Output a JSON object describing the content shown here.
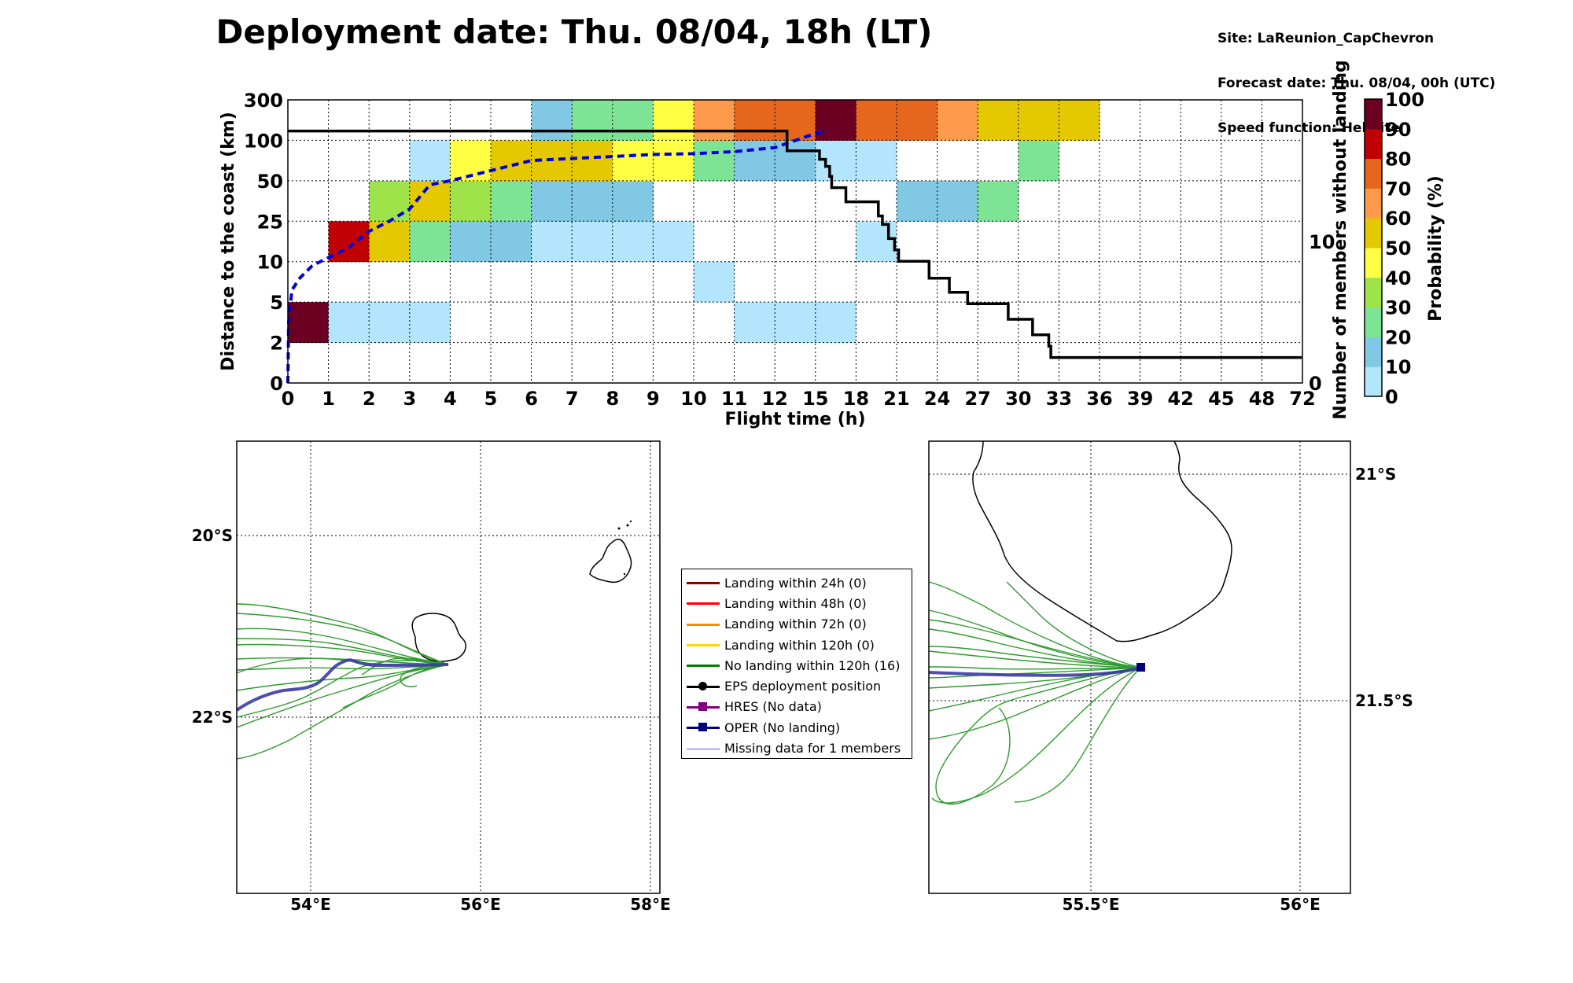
{
  "title": "Deployment date: Thu. 08/04, 18h (LT)",
  "meta": {
    "site": "Site: LaReunion_CapChevron",
    "forecast": "Forecast date: Thu. 08/04, 00h (UTC)",
    "speed": "Speed function: Helikite"
  },
  "chart_data": [
    {
      "type": "heatmap",
      "xlabel": "Flight time (h)",
      "ylabel": "Distance to the coast (km)",
      "y2label": "Number of members without landing",
      "colorbar_label": "Probability (%)",
      "x_ticks": [
        "0",
        "1",
        "2",
        "3",
        "4",
        "5",
        "6",
        "7",
        "8",
        "9",
        "10",
        "11",
        "12",
        "15",
        "18",
        "21",
        "24",
        "27",
        "30",
        "33",
        "36",
        "39",
        "42",
        "45",
        "48",
        "72"
      ],
      "y_ticks": [
        "0",
        "2",
        "5",
        "10",
        "25",
        "50",
        "100",
        "300"
      ],
      "y2_ticks": [
        "0",
        "10"
      ],
      "colorbar_ticks": [
        "0",
        "10",
        "20",
        "30",
        "40",
        "50",
        "60",
        "70",
        "80",
        "90",
        "100"
      ],
      "colorbar_colors": [
        "#b3e5fc",
        "#81c8e4",
        "#7ee495",
        "#9ee34a",
        "#ffff44",
        "#e4c800",
        "#fd9a4b",
        "#e6661d",
        "#c10003",
        "#6b0022"
      ],
      "grid": true,
      "cells_note_units": "each cell = [x-bin index (0..24), y-bin index (0=0-2km .. 6=100-300km), probability %]",
      "cells": [
        [
          0,
          1,
          95
        ],
        [
          1,
          1,
          5
        ],
        [
          2,
          1,
          5
        ],
        [
          3,
          1,
          5
        ],
        [
          11,
          1,
          5
        ],
        [
          12,
          1,
          5
        ],
        [
          13,
          1,
          5
        ],
        [
          10,
          2,
          5
        ],
        [
          1,
          3,
          85
        ],
        [
          2,
          3,
          55
        ],
        [
          3,
          3,
          25
        ],
        [
          4,
          3,
          15
        ],
        [
          5,
          3,
          15
        ],
        [
          6,
          3,
          5
        ],
        [
          7,
          3,
          5
        ],
        [
          8,
          3,
          5
        ],
        [
          9,
          3,
          5
        ],
        [
          14,
          3,
          5
        ],
        [
          2,
          4,
          35
        ],
        [
          3,
          4,
          55
        ],
        [
          4,
          4,
          35
        ],
        [
          5,
          4,
          25
        ],
        [
          6,
          4,
          15
        ],
        [
          7,
          4,
          15
        ],
        [
          8,
          4,
          15
        ],
        [
          15,
          4,
          15
        ],
        [
          16,
          4,
          15
        ],
        [
          17,
          4,
          25
        ],
        [
          3,
          5,
          5
        ],
        [
          4,
          5,
          45
        ],
        [
          5,
          5,
          55
        ],
        [
          6,
          5,
          55
        ],
        [
          7,
          5,
          55
        ],
        [
          8,
          5,
          45
        ],
        [
          9,
          5,
          45
        ],
        [
          10,
          5,
          25
        ],
        [
          11,
          5,
          15
        ],
        [
          12,
          5,
          15
        ],
        [
          13,
          5,
          5
        ],
        [
          14,
          5,
          5
        ],
        [
          18,
          5,
          25
        ],
        [
          6,
          6,
          15
        ],
        [
          7,
          6,
          25
        ],
        [
          8,
          6,
          25
        ],
        [
          9,
          6,
          45
        ],
        [
          10,
          6,
          65
        ],
        [
          11,
          6,
          75
        ],
        [
          12,
          6,
          75
        ],
        [
          13,
          6,
          95
        ],
        [
          14,
          6,
          75
        ],
        [
          15,
          6,
          75
        ],
        [
          16,
          6,
          65
        ],
        [
          17,
          6,
          55
        ],
        [
          18,
          6,
          55
        ],
        [
          19,
          6,
          55
        ]
      ],
      "series": [
        {
          "name": "Median distance (dashed)",
          "color": "#0000dd",
          "points": [
            [
              0,
              0
            ],
            [
              0.02,
              1.5
            ],
            [
              0.1,
              2.3
            ],
            [
              0.3,
              2.6
            ],
            [
              0.6,
              2.9
            ],
            [
              1,
              3.1
            ],
            [
              1.5,
              3.35
            ],
            [
              2,
              3.75
            ],
            [
              2.5,
              4.0
            ],
            [
              3,
              4.3
            ],
            [
              3.5,
              4.9
            ],
            [
              4,
              5.0
            ],
            [
              5,
              5.25
            ],
            [
              6,
              5.5
            ],
            [
              7,
              5.55
            ],
            [
              8,
              5.6
            ],
            [
              9,
              5.65
            ],
            [
              10,
              5.67
            ],
            [
              11,
              5.72
            ],
            [
              12,
              5.82
            ],
            [
              12.8,
              6.1
            ],
            [
              13.3,
              6.25
            ]
          ]
        },
        {
          "name": "Number of members without landing (step)",
          "color": "#000000",
          "y2_max": 14,
          "points": [
            [
              0,
              17.8
            ],
            [
              12.3,
              17.8
            ],
            [
              12.3,
              16.4
            ],
            [
              13.1,
              16.4
            ],
            [
              13.1,
              15.8
            ],
            [
              13.25,
              15.8
            ],
            [
              13.25,
              15.3
            ],
            [
              13.35,
              15.3
            ],
            [
              13.35,
              14.6
            ],
            [
              13.4,
              14.6
            ],
            [
              13.4,
              13.8
            ],
            [
              13.75,
              13.8
            ],
            [
              13.75,
              12.8
            ],
            [
              14.55,
              12.8
            ],
            [
              14.55,
              11.8
            ],
            [
              14.65,
              11.8
            ],
            [
              14.65,
              11.2
            ],
            [
              14.8,
              11.2
            ],
            [
              14.8,
              10.2
            ],
            [
              14.95,
              10.2
            ],
            [
              14.95,
              9.4
            ],
            [
              15.05,
              9.4
            ],
            [
              15.05,
              8.6
            ],
            [
              15.8,
              8.6
            ],
            [
              15.8,
              7.4
            ],
            [
              16.3,
              7.4
            ],
            [
              16.3,
              6.4
            ],
            [
              16.75,
              6.4
            ],
            [
              16.75,
              5.6
            ],
            [
              17.75,
              5.6
            ],
            [
              17.75,
              4.5
            ],
            [
              18.35,
              4.5
            ],
            [
              18.35,
              3.4
            ],
            [
              18.75,
              3.4
            ],
            [
              18.75,
              2.6
            ],
            [
              18.8,
              2.6
            ],
            [
              18.8,
              1.8
            ],
            [
              24.98,
              1.8
            ]
          ]
        }
      ]
    },
    {
      "type": "map",
      "x_ticks": [
        "54°E",
        "56°E",
        "58°E"
      ],
      "y_ticks": [
        "20°S",
        "22°S"
      ],
      "members_color": "#2e9b2e",
      "oper_color": "#3b3ba6"
    },
    {
      "type": "map",
      "x_ticks": [
        "55.5°E",
        "56°E"
      ],
      "y_ticks": [
        "21°S",
        "21.5°S"
      ],
      "members_color": "#2e9b2e",
      "oper_color": "#3b3ba6"
    }
  ],
  "legend": [
    {
      "label": "Landing within 24h (0)",
      "color": "#8b0000",
      "marker": "none"
    },
    {
      "label": "Landing within 48h (0)",
      "color": "#ff0000",
      "marker": "none"
    },
    {
      "label": "Landing within 72h (0)",
      "color": "#ff8c00",
      "marker": "none"
    },
    {
      "label": "Landing within 120h (0)",
      "color": "#ffd700",
      "marker": "none"
    },
    {
      "label": "No landing within 120h (16)",
      "color": "#008000",
      "marker": "none"
    },
    {
      "label": "EPS deployment position",
      "color": "#000000",
      "marker": "circle"
    },
    {
      "label": "HRES (No data)",
      "color": "#800080",
      "marker": "square"
    },
    {
      "label": "OPER (No landing)",
      "color": "#00007f",
      "marker": "square"
    },
    {
      "label": "Missing data for 1 members",
      "color": "#5555ff",
      "marker": "none"
    }
  ]
}
